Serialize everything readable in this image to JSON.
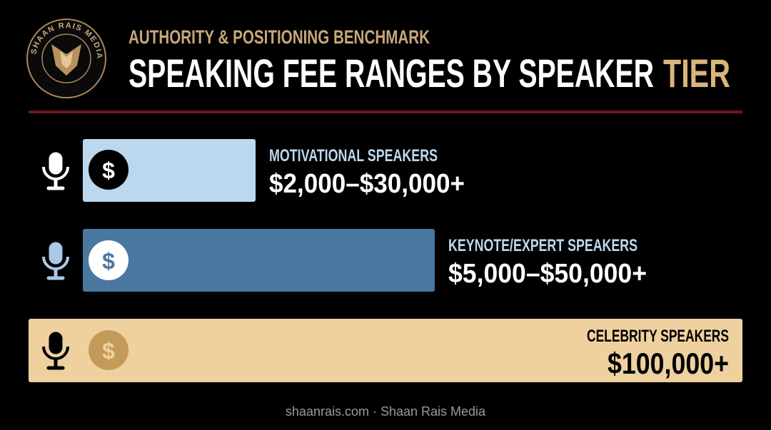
{
  "logo": {
    "text": "SHAAN RAIS MEDIA"
  },
  "header": {
    "supertitle": "AUTHORITY & POSITIONING BENCHMARK",
    "title_main": "SPEAKING FEE RANGES BY SPEAKER",
    "title_highlight": "TIER"
  },
  "tiers": [
    {
      "name": "MOTIVATIONAL SPEAKERS",
      "range": "$2,000–$30,000+"
    },
    {
      "name": "KEYNOTE/EXPERT SPEAKERS",
      "range": "$5,000–$50,000+"
    },
    {
      "name": "CELEBRITY SPEAKERS",
      "range": "$100,000+"
    }
  ],
  "footer": "shaanrais.com · Shaan Rais Media"
}
